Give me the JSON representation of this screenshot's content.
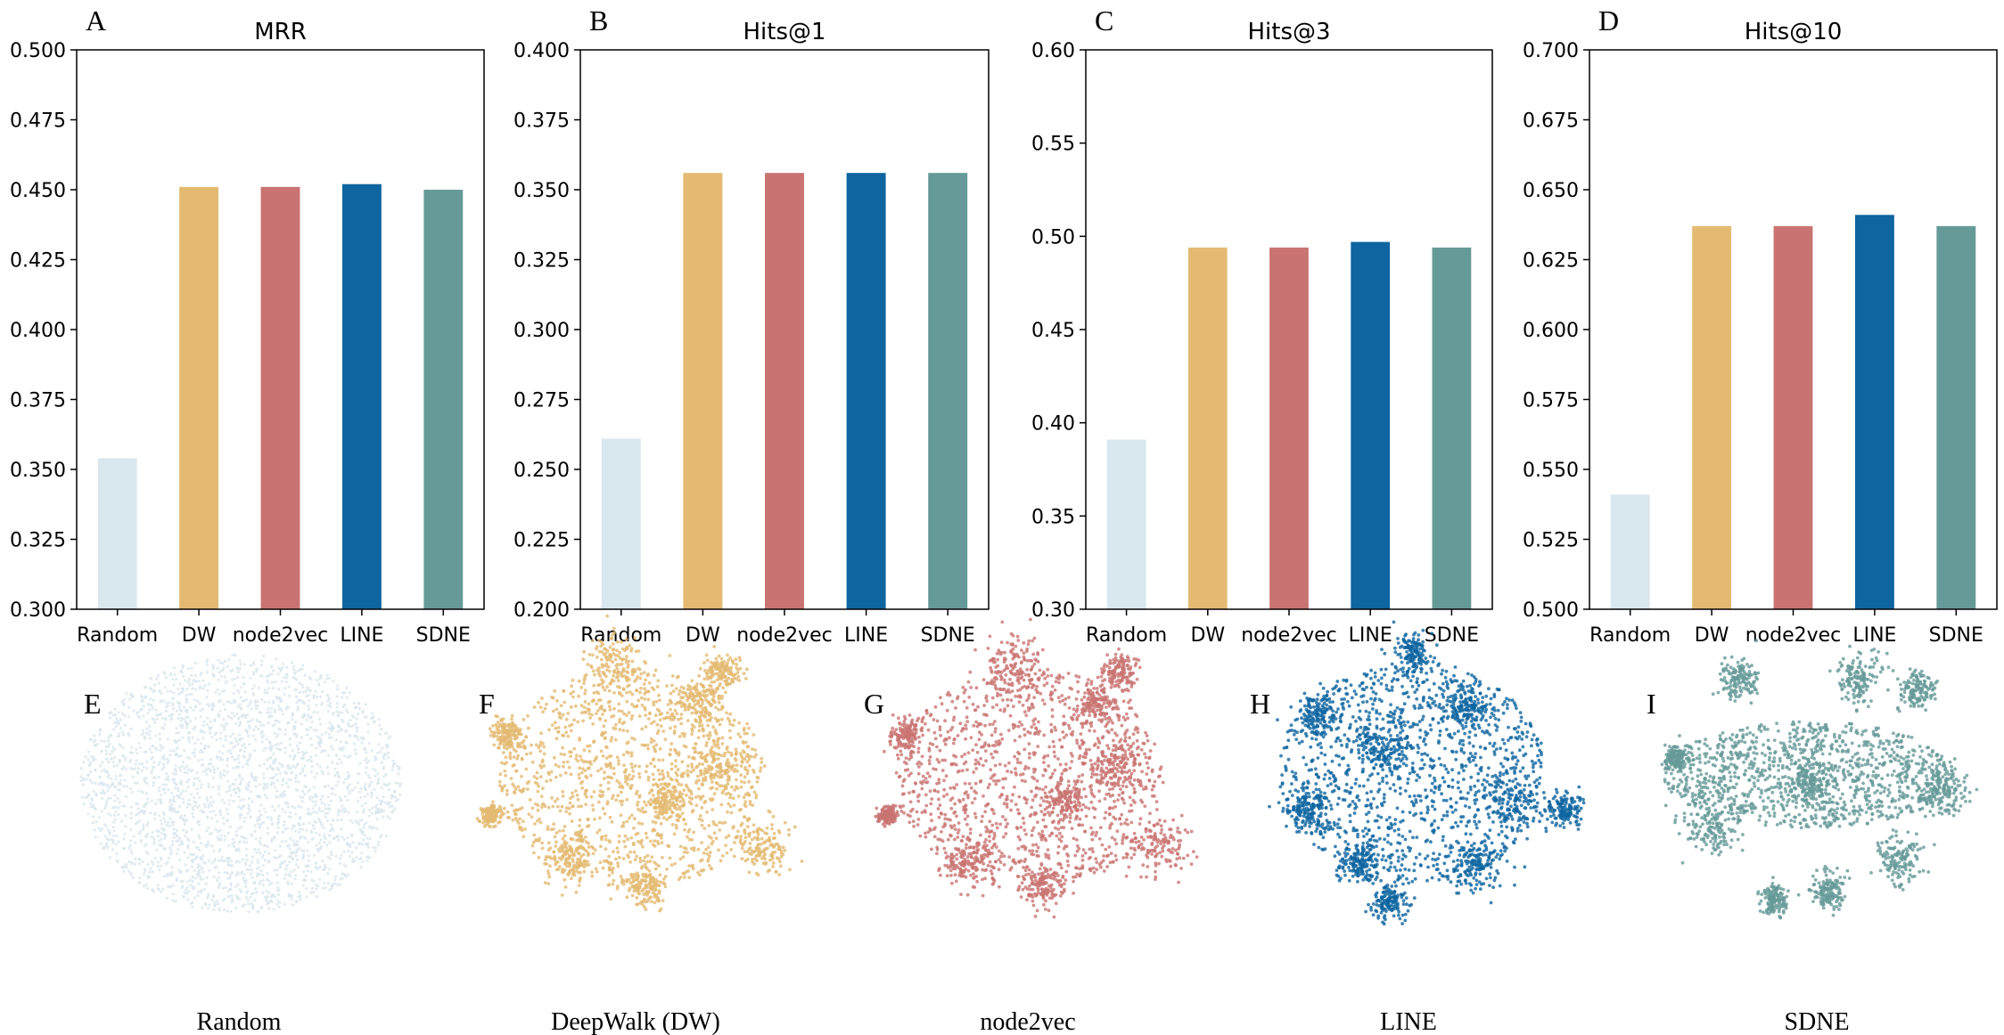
{
  "figure": {
    "method_colors": {
      "Random": "#d9e7ee",
      "DW": "#e4ba72",
      "node2vec": "#c97472",
      "LINE": "#0e65a0",
      "SDNE": "#659a98"
    }
  },
  "chart_data": [
    {
      "type": "bar",
      "panel": "A",
      "title": "MRR",
      "categories": [
        "Random",
        "DW",
        "node2vec",
        "LINE",
        "SDNE"
      ],
      "values": [
        0.354,
        0.451,
        0.451,
        0.452,
        0.45
      ],
      "ylim": [
        0.3,
        0.5
      ],
      "yticks": [
        "0.300",
        "0.325",
        "0.350",
        "0.375",
        "0.400",
        "0.425",
        "0.450",
        "0.475",
        "0.500"
      ],
      "xlabel": "",
      "ylabel": "",
      "grid": false,
      "legend": "none"
    },
    {
      "type": "bar",
      "panel": "B",
      "title": "Hits@1",
      "categories": [
        "Random",
        "DW",
        "node2vec",
        "LINE",
        "SDNE"
      ],
      "values": [
        0.261,
        0.356,
        0.356,
        0.356,
        0.356
      ],
      "ylim": [
        0.2,
        0.4
      ],
      "yticks": [
        "0.200",
        "0.225",
        "0.250",
        "0.275",
        "0.300",
        "0.325",
        "0.350",
        "0.375",
        "0.400"
      ],
      "xlabel": "",
      "ylabel": "",
      "grid": false,
      "legend": "none"
    },
    {
      "type": "bar",
      "panel": "C",
      "title": "Hits@3",
      "categories": [
        "Random",
        "DW",
        "node2vec",
        "LINE",
        "SDNE"
      ],
      "values": [
        0.391,
        0.494,
        0.494,
        0.497,
        0.494
      ],
      "ylim": [
        0.3,
        0.6
      ],
      "yticks": [
        "0.30",
        "0.35",
        "0.40",
        "0.45",
        "0.50",
        "0.55",
        "0.60"
      ],
      "xlabel": "",
      "ylabel": "",
      "grid": false,
      "legend": "none"
    },
    {
      "type": "bar",
      "panel": "D",
      "title": "Hits@10",
      "categories": [
        "Random",
        "DW",
        "node2vec",
        "LINE",
        "SDNE"
      ],
      "values": [
        0.541,
        0.637,
        0.637,
        0.641,
        0.637
      ],
      "ylim": [
        0.5,
        0.7
      ],
      "yticks": [
        "0.500",
        "0.525",
        "0.550",
        "0.575",
        "0.600",
        "0.625",
        "0.650",
        "0.675",
        "0.700"
      ],
      "xlabel": "",
      "ylabel": "",
      "grid": false,
      "legend": "none"
    },
    {
      "type": "scatter",
      "description_kind": "embedding-visualization",
      "panels": [
        {
          "panel": "E",
          "caption": "Random",
          "method": "Random"
        },
        {
          "panel": "F",
          "caption": "DeepWalk (DW)",
          "method": "DW"
        },
        {
          "panel": "G",
          "caption": "node2vec",
          "method": "node2vec"
        },
        {
          "panel": "H",
          "caption": "LINE",
          "method": "LINE"
        },
        {
          "panel": "I",
          "caption": "SDNE",
          "method": "SDNE"
        }
      ]
    }
  ]
}
